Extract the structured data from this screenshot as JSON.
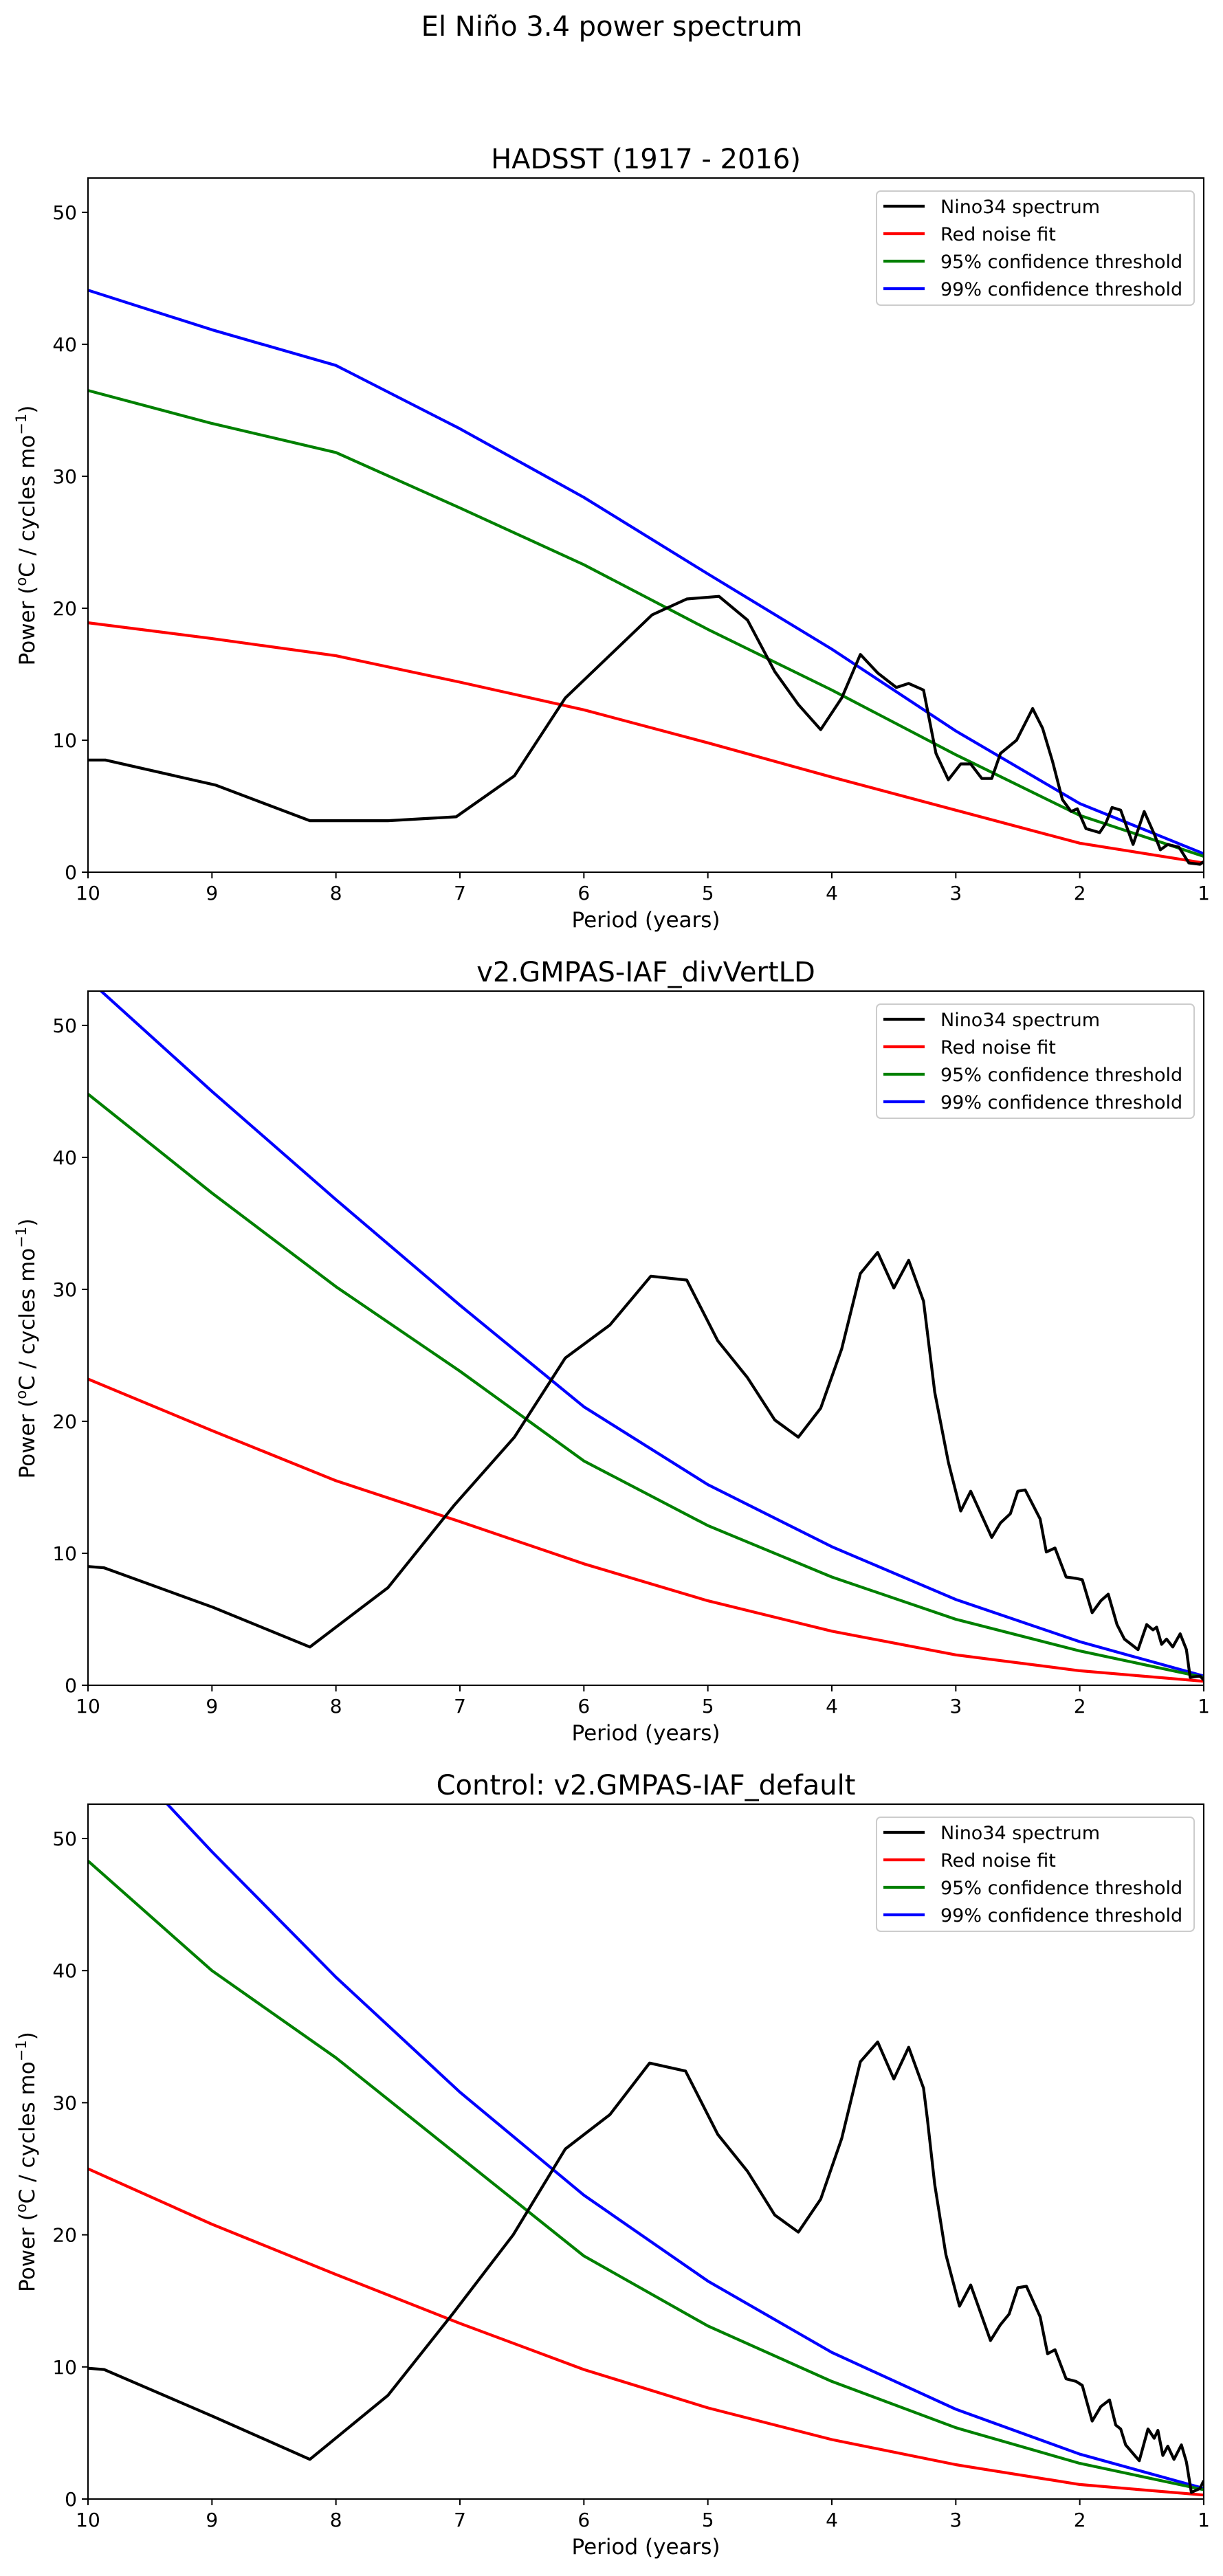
{
  "figure": {
    "suptitle": "El Niño 3.4 power spectrum"
  },
  "chart_data": [
    {
      "type": "line",
      "title": "HADSST (1917 - 2016)",
      "xlabel": "Period (years)",
      "ylabel": "Power (°C / cycles mo⁻¹)",
      "ylabel_parts": {
        "pre": "Power (",
        "sup1": "o",
        "mid": "C / cycles mo",
        "sup2": "−1",
        "post": ")"
      },
      "xlim": [
        10,
        1
      ],
      "ylim": [
        0,
        52.6
      ],
      "xticks": [
        10,
        9,
        8,
        7,
        6,
        5,
        4,
        3,
        2,
        1
      ],
      "yticks": [
        0,
        10,
        20,
        30,
        40,
        50
      ],
      "grid": false,
      "legend_position": "top-right",
      "series": [
        {
          "name": "Nino34 spectrum",
          "color": "#000000",
          "x": [
            10,
            9.86,
            8.97,
            8.21,
            7.58,
            7.03,
            6.56,
            6.15,
            5.45,
            5.17,
            4.91,
            4.68,
            4.46,
            4.27,
            4.09,
            3.92,
            3.77,
            3.63,
            3.48,
            3.38,
            3.26,
            3.16,
            3.06,
            2.96,
            2.88,
            2.79,
            2.71,
            2.64,
            2.51,
            2.38,
            2.3,
            2.22,
            2.14,
            2.07,
            2.02,
            1.95,
            1.84,
            1.79,
            1.74,
            1.67,
            1.57,
            1.48,
            1.4,
            1.35,
            1.29,
            1.2,
            1.12,
            1.03,
            1.0
          ],
          "y": [
            8.5,
            8.5,
            6.6,
            3.9,
            3.9,
            4.2,
            7.3,
            13.2,
            19.5,
            20.7,
            20.9,
            19.1,
            15.2,
            12.7,
            10.8,
            13.2,
            16.5,
            15.1,
            14.0,
            14.3,
            13.8,
            9.0,
            7.0,
            8.2,
            8.2,
            7.1,
            7.1,
            9.0,
            10.0,
            12.4,
            10.9,
            8.4,
            5.5,
            4.6,
            4.8,
            3.3,
            3.0,
            3.7,
            4.9,
            4.7,
            2.1,
            4.6,
            2.9,
            1.7,
            2.1,
            1.9,
            0.7,
            0.6,
            0.8
          ]
        },
        {
          "name": "Red noise fit",
          "color": "#ff0000",
          "x": [
            10,
            9,
            8,
            7,
            6,
            5,
            4,
            3,
            2,
            1
          ],
          "y": [
            18.9,
            17.7,
            16.4,
            14.4,
            12.3,
            9.8,
            7.2,
            4.7,
            2.2,
            0.7
          ]
        },
        {
          "name": "95% confidence threshold",
          "color": "#008000",
          "x": [
            10,
            9,
            8,
            7,
            6,
            5,
            4,
            3,
            2,
            1
          ],
          "y": [
            36.5,
            34.0,
            31.8,
            27.6,
            23.3,
            18.4,
            13.8,
            8.9,
            4.3,
            1.2
          ]
        },
        {
          "name": "99% confidence threshold",
          "color": "#0000ff",
          "x": [
            10,
            9,
            8,
            7,
            6,
            5,
            4,
            3,
            2,
            1
          ],
          "y": [
            44.1,
            41.1,
            38.4,
            33.6,
            28.4,
            22.6,
            16.9,
            10.7,
            5.2,
            1.4
          ]
        }
      ]
    },
    {
      "type": "line",
      "title": "v2.GMPAS-IAF_divVertLD",
      "xlabel": "Period (years)",
      "ylabel": "Power (°C / cycles mo⁻¹)",
      "ylabel_parts": {
        "pre": "Power (",
        "sup1": "o",
        "mid": "C / cycles mo",
        "sup2": "−1",
        "post": ")"
      },
      "xlim": [
        10,
        1
      ],
      "ylim": [
        0,
        52.6
      ],
      "xticks": [
        10,
        9,
        8,
        7,
        6,
        5,
        4,
        3,
        2,
        1
      ],
      "yticks": [
        0,
        10,
        20,
        30,
        40,
        50
      ],
      "grid": false,
      "legend_position": "top-right",
      "series": [
        {
          "name": "Nino34 spectrum",
          "color": "#000000",
          "x": [
            10,
            9.87,
            8.99,
            8.21,
            7.58,
            7.05,
            6.56,
            6.15,
            5.79,
            5.46,
            5.17,
            4.92,
            4.68,
            4.46,
            4.27,
            4.09,
            3.92,
            3.77,
            3.63,
            3.5,
            3.38,
            3.26,
            3.17,
            3.06,
            2.96,
            2.88,
            2.71,
            2.64,
            2.56,
            2.5,
            2.44,
            2.32,
            2.27,
            2.2,
            2.11,
            2.03,
            1.98,
            1.9,
            1.83,
            1.77,
            1.7,
            1.64,
            1.53,
            1.46,
            1.41,
            1.38,
            1.34,
            1.3,
            1.25,
            1.19,
            1.14,
            1.11,
            1.03,
            1.0
          ],
          "y": [
            9.0,
            8.9,
            5.9,
            2.9,
            7.4,
            13.6,
            18.8,
            24.8,
            27.3,
            31.0,
            30.7,
            26.1,
            23.3,
            20.1,
            18.8,
            21.0,
            25.5,
            31.2,
            32.8,
            30.1,
            32.2,
            29.1,
            22.2,
            16.9,
            13.2,
            14.7,
            11.2,
            12.3,
            13.0,
            14.7,
            14.8,
            12.6,
            10.1,
            10.4,
            8.2,
            8.1,
            8.0,
            5.5,
            6.4,
            6.9,
            4.6,
            3.5,
            2.7,
            4.6,
            4.2,
            4.4,
            3.1,
            3.5,
            2.9,
            3.9,
            2.7,
            0.6,
            0.7,
            0.4
          ]
        },
        {
          "name": "Red noise fit",
          "color": "#ff0000",
          "x": [
            10,
            9,
            8,
            7,
            6,
            5,
            4,
            3,
            2,
            1
          ],
          "y": [
            23.2,
            19.3,
            15.5,
            12.4,
            9.2,
            6.4,
            4.1,
            2.3,
            1.1,
            0.3
          ]
        },
        {
          "name": "95% confidence threshold",
          "color": "#008000",
          "x": [
            10,
            9,
            8,
            7,
            6,
            5,
            4,
            3,
            2,
            1
          ],
          "y": [
            44.8,
            37.3,
            30.2,
            23.8,
            17.0,
            12.1,
            8.2,
            5.0,
            2.6,
            0.6
          ]
        },
        {
          "name": "99% confidence threshold",
          "color": "#0000ff",
          "x": [
            10,
            9,
            8,
            7,
            6,
            5,
            4,
            3,
            2,
            1
          ],
          "y": [
            53.5,
            45.0,
            36.8,
            28.8,
            21.1,
            15.2,
            10.5,
            6.5,
            3.3,
            0.7
          ]
        }
      ]
    },
    {
      "type": "line",
      "title": "Control: v2.GMPAS-IAF_default",
      "xlabel": "Period (years)",
      "ylabel": "Power (°C / cycles mo⁻¹)",
      "ylabel_parts": {
        "pre": "Power (",
        "sup1": "o",
        "mid": "C / cycles mo",
        "sup2": "−1",
        "post": ")"
      },
      "xlim": [
        10,
        1
      ],
      "ylim": [
        0,
        52.6
      ],
      "xticks": [
        10,
        9,
        8,
        7,
        6,
        5,
        4,
        3,
        2,
        1
      ],
      "yticks": [
        0,
        10,
        20,
        30,
        40,
        50
      ],
      "grid": false,
      "legend_position": "top-right",
      "series": [
        {
          "name": "Nino34 spectrum",
          "color": "#000000",
          "x": [
            10,
            9.87,
            8.99,
            8.21,
            7.58,
            7.06,
            6.57,
            6.15,
            5.79,
            5.47,
            5.18,
            4.92,
            4.68,
            4.46,
            4.27,
            4.09,
            3.92,
            3.77,
            3.63,
            3.5,
            3.38,
            3.26,
            3.23,
            3.17,
            3.08,
            2.97,
            2.88,
            2.72,
            2.64,
            2.57,
            2.5,
            2.43,
            2.32,
            2.26,
            2.2,
            2.11,
            2.03,
            1.98,
            1.9,
            1.83,
            1.76,
            1.71,
            1.67,
            1.63,
            1.52,
            1.45,
            1.4,
            1.37,
            1.33,
            1.29,
            1.24,
            1.18,
            1.14,
            1.1,
            1.03,
            1.0
          ],
          "y": [
            9.9,
            9.8,
            6.25,
            3.0,
            7.85,
            14.0,
            20.0,
            26.5,
            29.1,
            33.0,
            32.4,
            27.6,
            24.8,
            21.5,
            20.2,
            22.7,
            27.3,
            33.1,
            34.6,
            31.8,
            34.2,
            31.1,
            28.8,
            23.8,
            18.5,
            14.6,
            16.2,
            12.0,
            13.2,
            14.0,
            16.0,
            16.1,
            13.8,
            11.0,
            11.3,
            9.1,
            8.9,
            8.6,
            5.9,
            7.0,
            7.5,
            5.6,
            5.3,
            4.1,
            2.9,
            5.3,
            4.6,
            5.2,
            3.3,
            4.0,
            3.0,
            4.1,
            2.8,
            0.5,
            0.8,
            1.4
          ]
        },
        {
          "name": "Red noise fit",
          "color": "#ff0000",
          "x": [
            10,
            9,
            8,
            7,
            6,
            5,
            4,
            3,
            2,
            1
          ],
          "y": [
            25.0,
            20.8,
            17.0,
            13.3,
            9.8,
            6.9,
            4.5,
            2.6,
            1.1,
            0.3
          ]
        },
        {
          "name": "95% confidence threshold",
          "color": "#008000",
          "x": [
            10,
            9,
            8,
            7,
            6,
            5,
            4,
            3,
            2,
            1
          ],
          "y": [
            48.3,
            40.0,
            33.4,
            25.9,
            18.4,
            13.1,
            8.9,
            5.4,
            2.7,
            0.7
          ]
        },
        {
          "name": "99% confidence threshold",
          "color": "#0000ff",
          "x": [
            10,
            9.4,
            9,
            8,
            7,
            6,
            5,
            4,
            3,
            2,
            1
          ],
          "y": [
            58.0,
            53.0,
            49.0,
            39.5,
            30.8,
            23.0,
            16.5,
            11.1,
            6.8,
            3.4,
            0.8
          ]
        }
      ]
    }
  ]
}
